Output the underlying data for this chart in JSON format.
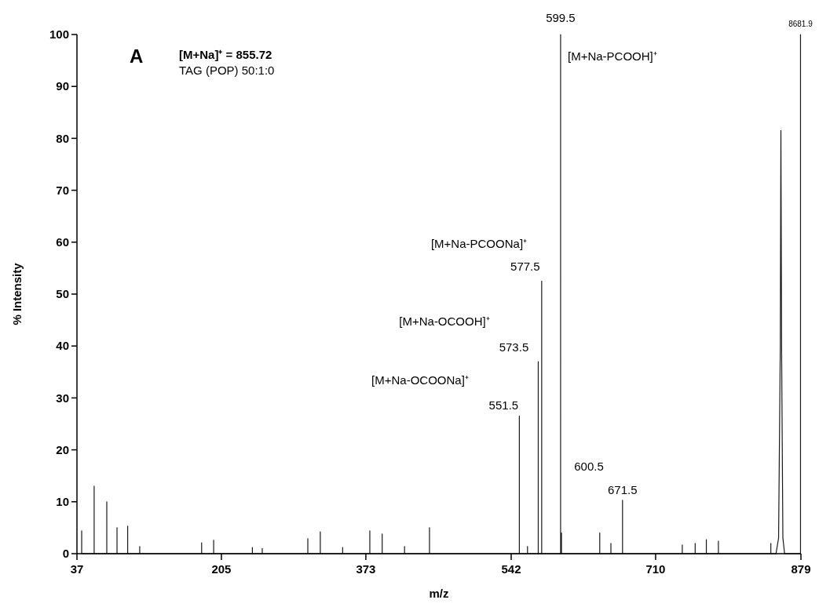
{
  "chart_data": {
    "type": "line",
    "xlabel": "m/z",
    "ylabel": "% Intensity",
    "xlim": [
      37,
      879
    ],
    "ylim": [
      0,
      100
    ],
    "xticks": [
      37,
      205,
      373,
      542,
      710,
      879
    ],
    "yticks": [
      0,
      10,
      20,
      30,
      40,
      50,
      60,
      70,
      80,
      90,
      100
    ],
    "grid": false,
    "marker": "none",
    "line_style": "solid",
    "series": [
      {
        "color": "#1a1a1a",
        "x": [
          42.5,
          42.5,
          42.5,
          57,
          57,
          57,
          71.7,
          71.7,
          71.7,
          83.6,
          83.6,
          83.6,
          96,
          96,
          96,
          110,
          110,
          110,
          182,
          182,
          182,
          196,
          196,
          196,
          241,
          241,
          241,
          252.5,
          252.5,
          252.5,
          305.5,
          305.5,
          305.5,
          320,
          320,
          320,
          346,
          346,
          346,
          377.6,
          377.6,
          377.6,
          392,
          392,
          392,
          418,
          418,
          418,
          447,
          447,
          447,
          551.5,
          551.5,
          551.5,
          561,
          561,
          561,
          573.5,
          573.5,
          573.5,
          577.5,
          577.5,
          577.5,
          599.5,
          599.5,
          599.5,
          600.5,
          600.5,
          600.5,
          645,
          645,
          645,
          658,
          658,
          658,
          671.5,
          671.5,
          671.5,
          741,
          741,
          741,
          756,
          756,
          756,
          769,
          769,
          769,
          783,
          783,
          783,
          844,
          844,
          844,
          850,
          853,
          855,
          855.7,
          856.5,
          858,
          860,
          878.5,
          878.5,
          878.5
        ],
        "values": [
          0,
          4.4,
          0,
          0,
          13,
          0,
          0,
          10,
          0,
          0,
          5,
          0,
          0,
          5.3,
          0,
          0,
          1.4,
          0,
          0,
          2.1,
          0,
          0,
          2.6,
          0,
          0,
          1.2,
          0,
          0,
          1,
          0,
          0,
          2.9,
          0,
          0,
          4.2,
          0,
          0,
          1.2,
          0,
          0,
          4.4,
          0,
          0,
          3.8,
          0,
          0,
          1.4,
          0,
          0,
          5,
          0,
          0,
          26.5,
          0,
          0,
          1.4,
          0,
          0,
          37,
          0,
          0,
          52.5,
          0,
          0,
          100,
          0,
          0,
          4,
          0,
          0,
          4,
          0,
          0,
          2,
          0,
          0,
          10.3,
          0,
          0,
          1.7,
          0,
          0,
          2,
          0,
          0,
          2.7,
          0,
          0,
          2.4,
          0,
          0,
          2,
          0,
          0,
          3,
          40,
          81.5,
          40,
          3,
          0,
          0,
          100,
          0
        ]
      }
    ],
    "annotations": [
      "A",
      "[M+Na]⁺ = 855.72",
      "TAG (POP)  50:1:0",
      "[M+Na-PCOOH]⁺",
      "[M+Na-PCOONa]⁺",
      "[M+Na-OCOOH]⁺",
      "[M+Na-OCOONa]⁺",
      "600.5",
      {
        "text": "599.5",
        "x": 599.5,
        "y": 100
      },
      {
        "text": "8681.9",
        "x": 878.5,
        "y": 100
      },
      {
        "text": "577.5",
        "x": 577.5,
        "y": 52.5
      },
      {
        "text": "573.5",
        "x": 573.5,
        "y": 37
      },
      {
        "text": "551.5",
        "x": 551.5,
        "y": 26.5
      },
      {
        "text": "671.5",
        "x": 671.5,
        "y": 10.3
      }
    ]
  }
}
